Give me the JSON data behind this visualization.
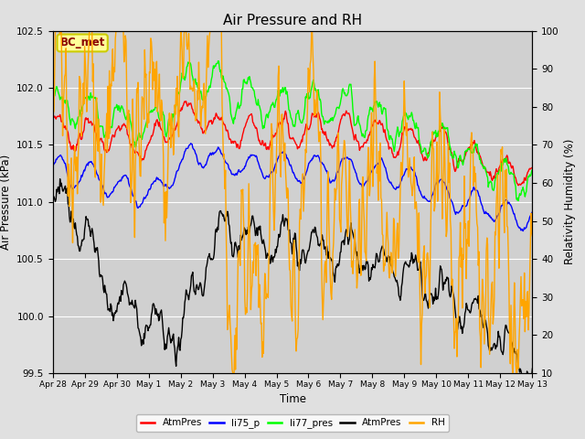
{
  "title": "Air Pressure and RH",
  "xlabel": "Time",
  "ylabel_left": "Air Pressure (kPa)",
  "ylabel_right": "Relativity Humidity (%)",
  "ylim_left": [
    99.5,
    102.5
  ],
  "ylim_right": [
    10,
    100
  ],
  "yticks_left": [
    99.5,
    100.0,
    100.5,
    101.0,
    101.5,
    102.0,
    102.5
  ],
  "yticks_right": [
    10,
    20,
    30,
    40,
    50,
    60,
    70,
    80,
    90,
    100
  ],
  "xtick_labels": [
    "Apr 28",
    "Apr 29",
    "Apr 30",
    "May 1",
    "May 2",
    "May 3",
    "May 4",
    "May 5",
    "May 6",
    "May 7",
    "May 8",
    "May 9",
    "May 10",
    "May 11",
    "May 12",
    "May 13"
  ],
  "bg_color": "#e0e0e0",
  "plot_bg_color": "#d0d0d0",
  "legend_labels": [
    "AtmPres",
    "li75_p",
    "li77_pres",
    "AtmPres",
    "RH"
  ],
  "legend_colors": [
    "red",
    "blue",
    "lime",
    "black",
    "orange"
  ],
  "annotation_text": "BC_met",
  "annotation_bg": "#ffff99",
  "annotation_border": "#cccc00"
}
